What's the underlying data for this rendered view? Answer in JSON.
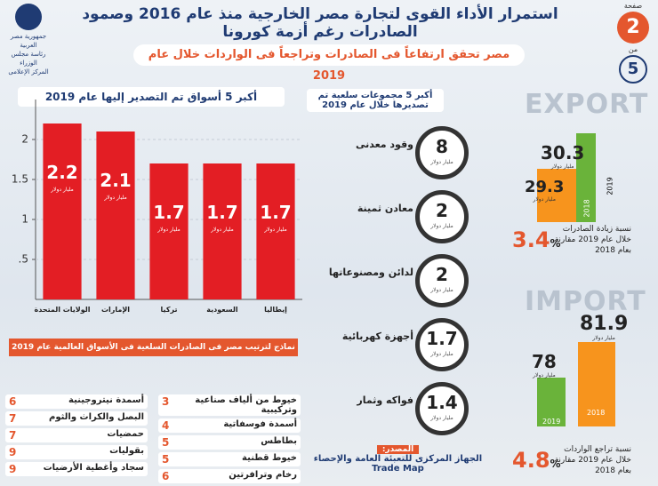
{
  "header": {
    "title": "استمرار الأداء القوى لتجارة مصر الخارجية منذ عام 2016 وصمود الصادرات رغم أزمة كورونا",
    "subtitle": "مصر تحقق ارتفاعاً فى الصادرات وتراجعاً فى الواردات خلال عام 2019",
    "logo": [
      "جمهورية مصر العربية",
      "رئاسة مجلس الوزراء",
      "المركز الإعلامى"
    ],
    "page": {
      "label": "صفحة",
      "current": 2,
      "of": "من",
      "total": 5
    }
  },
  "chart_data": {
    "type": "bar",
    "title": "أكبر 5 أسواق تم التصدير إليها عام 2019",
    "unit": "مليار دولار",
    "categories": [
      "الولايات المتحدة",
      "الإمارات",
      "تركيا",
      "السعودية",
      "إيطاليا"
    ],
    "values": [
      2.2,
      2.1,
      1.7,
      1.7,
      1.7
    ],
    "color": "#e31e24",
    "ylim": [
      0,
      2.5
    ],
    "yticks": [
      {
        "value": 0.5,
        "label": ".5"
      },
      1,
      1.5,
      2
    ],
    "grid": true
  },
  "commodities": {
    "title": "أكبر 5 مجموعات سلعية تم تصديرها خلال عام 2019",
    "unit": "مليار دولار",
    "items": [
      {
        "label": "وقود معدنى",
        "value": 8
      },
      {
        "label": "معادن ثمينة",
        "value": 2
      },
      {
        "label": "لدائن ومصنوعاتها",
        "value": 2
      },
      {
        "label": "أجهزة كهربائية",
        "value": 1.7
      },
      {
        "label": "فواكه وثمار",
        "value": 1.4
      }
    ]
  },
  "exports": {
    "label": "EXPORT",
    "unit": "مليار دولار",
    "bars": [
      {
        "year": "2019",
        "value": 30.3
      },
      {
        "year": "2018",
        "value": 29.3
      }
    ],
    "change": {
      "text": "نسبة زيادة الصادرات خلال عام 2019 مقارنة بعام 2018",
      "value": 3.4,
      "unit": "%"
    }
  },
  "imports": {
    "label": "IMPORT",
    "unit": "مليار دولار",
    "bars": [
      {
        "year": "2018",
        "value": 81.9
      },
      {
        "year": "2019",
        "value": 78
      }
    ],
    "change": {
      "text": "نسبة تراجع الواردات خلال عام 2019 مقارنة بعام 2018",
      "value": 4.8,
      "unit": "%"
    }
  },
  "rankings": {
    "title": "نماذج لترتيب مصر فى الصادرات السلعية فى الأسواق العالمية عام 2019",
    "columns": [
      [
        {
          "name": "خيوط من ألياف صناعية وتركيبية",
          "rank": 3
        },
        {
          "name": "أسمدة فوسفاتية",
          "rank": 4
        },
        {
          "name": "بطاطس",
          "rank": 5
        },
        {
          "name": "خيوط قطنية",
          "rank": 5
        },
        {
          "name": "رخام وترافرتين",
          "rank": 6
        }
      ],
      [
        {
          "name": "أسمدة نيتروجينية",
          "rank": 6
        },
        {
          "name": "البصل والكراث والثوم",
          "rank": 7
        },
        {
          "name": "حمضيات",
          "rank": 7
        },
        {
          "name": "بقوليات",
          "rank": 9
        },
        {
          "name": "سجاد وأغطية الأرضيات",
          "rank": 9
        }
      ]
    ]
  },
  "source": {
    "label": "المصدر:",
    "lines": [
      "الجهاز المركزى للتعبئة العامة والإحصاء",
      "Trade Map"
    ]
  }
}
